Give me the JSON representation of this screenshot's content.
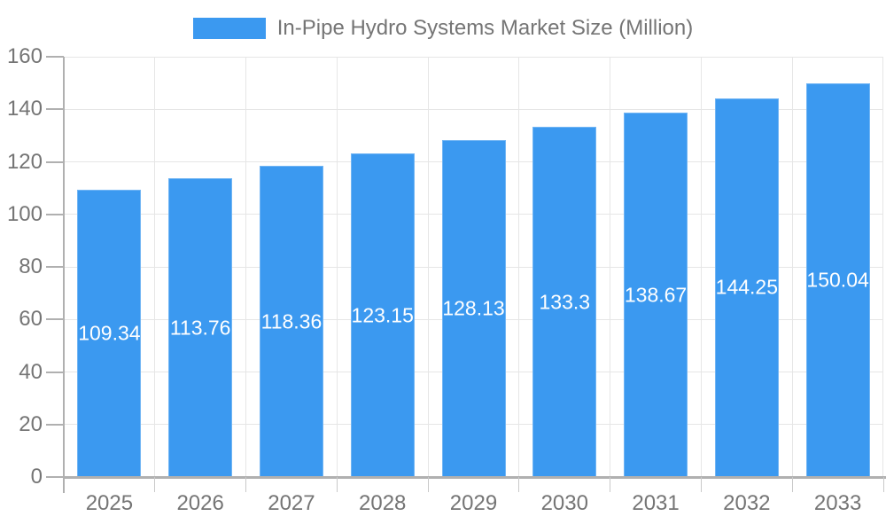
{
  "legend": {
    "label": "In-Pipe Hydro Systems Market Size (Million)"
  },
  "chart_data": {
    "type": "bar",
    "title": "In-Pipe Hydro Systems Market Size (Million)",
    "categories": [
      "2025",
      "2026",
      "2027",
      "2028",
      "2029",
      "2030",
      "2031",
      "2032",
      "2033"
    ],
    "values": [
      109.34,
      113.76,
      118.36,
      123.15,
      128.13,
      133.3,
      138.67,
      144.25,
      150.04
    ],
    "xlabel": "",
    "ylabel": "",
    "ylim": [
      0,
      160
    ],
    "yticks": [
      0,
      20,
      40,
      60,
      80,
      100,
      120,
      140,
      160
    ],
    "grid": true,
    "legend_position": "top",
    "bar_labels_position": "center-inside"
  },
  "colors": {
    "bar": "#3B99F0",
    "grid": "#E6E6E6",
    "axis": "#B0B0B0",
    "x_tick": "#C9C9C9",
    "text": "#757575",
    "bar_label": "#FFFFFF",
    "background": "#FFFFFF"
  }
}
